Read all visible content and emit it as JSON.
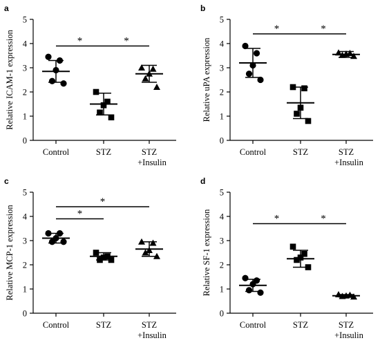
{
  "colors": {
    "ink": "#000000",
    "background": "#ffffff"
  },
  "chart_data": [
    {
      "type": "scatter",
      "panel": "a",
      "ylabel": "Relative ICAM-1 expression",
      "categories": [
        "Control",
        "STZ",
        "STZ\n+Insulin"
      ],
      "ylim": [
        0,
        5
      ],
      "yticks": [
        0,
        1,
        2,
        3,
        4,
        5
      ],
      "grid": false,
      "marker_shapes": [
        "circle",
        "square",
        "triangle"
      ],
      "points": [
        [
          3.45,
          3.3,
          2.9,
          2.45,
          2.35
        ],
        [
          2.0,
          1.6,
          1.45,
          1.15,
          0.95
        ],
        [
          3.0,
          2.95,
          2.75,
          2.55,
          2.2
        ]
      ],
      "means": [
        2.85,
        1.5,
        2.75
      ],
      "errors": [
        0.45,
        0.45,
        0.35
      ],
      "significance": [
        {
          "from": 0,
          "to": 1,
          "y": 3.9,
          "label": "*"
        },
        {
          "from": 1,
          "to": 2,
          "y": 3.9,
          "label": "*"
        }
      ]
    },
    {
      "type": "scatter",
      "panel": "b",
      "ylabel": "Relative uPA expression",
      "categories": [
        "Control",
        "STZ",
        "STZ\n+Insulin"
      ],
      "ylim": [
        0,
        5
      ],
      "yticks": [
        0,
        1,
        2,
        3,
        4,
        5
      ],
      "grid": false,
      "marker_shapes": [
        "circle",
        "square",
        "triangle"
      ],
      "points": [
        [
          3.9,
          3.6,
          3.1,
          2.75,
          2.5
        ],
        [
          2.2,
          2.15,
          1.35,
          1.1,
          0.8
        ],
        [
          3.62,
          3.6,
          3.57,
          3.52,
          3.48
        ]
      ],
      "means": [
        3.2,
        1.55,
        3.55
      ],
      "errors": [
        0.6,
        0.65,
        0.12
      ],
      "significance": [
        {
          "from": 0,
          "to": 1,
          "y": 4.4,
          "label": "*"
        },
        {
          "from": 1,
          "to": 2,
          "y": 4.4,
          "label": "*"
        }
      ]
    },
    {
      "type": "scatter",
      "panel": "c",
      "ylabel": "Relative MCP-1 expression",
      "categories": [
        "Control",
        "STZ",
        "STZ\n+Insulin"
      ],
      "ylim": [
        0,
        5
      ],
      "yticks": [
        0,
        1,
        2,
        3,
        4,
        5
      ],
      "grid": false,
      "marker_shapes": [
        "circle",
        "square",
        "triangle"
      ],
      "points": [
        [
          3.3,
          3.3,
          3.1,
          2.95,
          2.95
        ],
        [
          2.5,
          2.35,
          2.3,
          2.2,
          2.2
        ],
        [
          2.95,
          2.9,
          2.6,
          2.5,
          2.35
        ]
      ],
      "means": [
        3.1,
        2.35,
        2.65
      ],
      "errors": [
        0.2,
        0.15,
        0.3
      ],
      "significance": [
        {
          "from": 0,
          "to": 1,
          "y": 3.9,
          "label": "*"
        },
        {
          "from": 0,
          "to": 2,
          "y": 4.4,
          "label": "*"
        }
      ]
    },
    {
      "type": "scatter",
      "panel": "d",
      "ylabel": "Relative SF-1 expression",
      "categories": [
        "Control",
        "STZ",
        "STZ\n+Insulin"
      ],
      "ylim": [
        0,
        5
      ],
      "yticks": [
        0,
        1,
        2,
        3,
        4,
        5
      ],
      "grid": false,
      "marker_shapes": [
        "circle",
        "square",
        "triangle"
      ],
      "points": [
        [
          1.45,
          1.35,
          1.2,
          0.95,
          0.85
        ],
        [
          2.75,
          2.45,
          2.3,
          2.2,
          1.9
        ],
        [
          0.77,
          0.75,
          0.72,
          0.7,
          0.68
        ]
      ],
      "means": [
        1.15,
        2.25,
        0.72
      ],
      "errors": [
        0.25,
        0.35,
        0.05
      ],
      "significance": [
        {
          "from": 0,
          "to": 1,
          "y": 3.7,
          "label": "*"
        },
        {
          "from": 1,
          "to": 2,
          "y": 3.7,
          "label": "*"
        }
      ]
    }
  ]
}
